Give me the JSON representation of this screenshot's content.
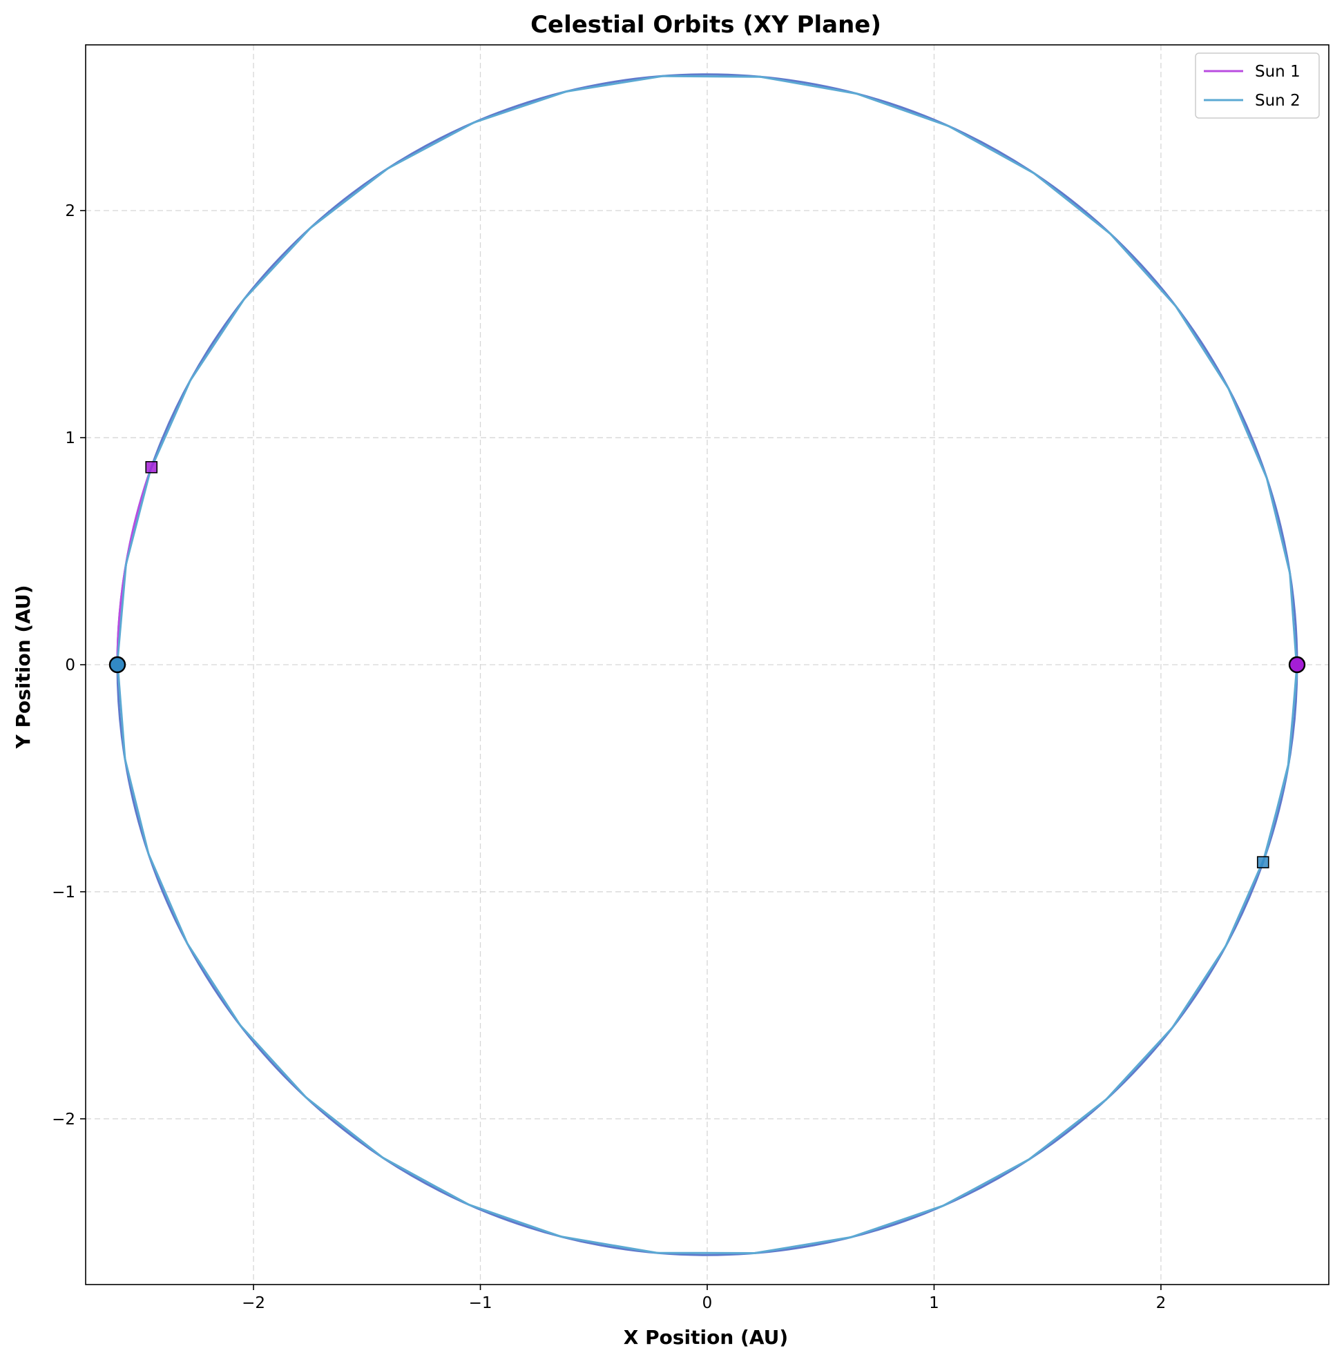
{
  "chart_data": {
    "type": "line",
    "title": "Celestial Orbits (XY Plane)",
    "xlabel": "X Position (AU)",
    "ylabel": "Y Position (AU)",
    "xlim": [
      -2.74,
      2.74
    ],
    "ylim": [
      -2.73,
      2.73
    ],
    "x_ticks": [
      -2,
      -1,
      0,
      1,
      2
    ],
    "y_ticks": [
      -2,
      -1,
      0,
      1,
      2
    ],
    "x_tick_labels": [
      "−2",
      "−1",
      "0",
      "1",
      "2"
    ],
    "y_tick_labels": [
      "−2",
      "−1",
      "0",
      "1",
      "2"
    ],
    "grid": true,
    "legend_position": "top-right",
    "orbit_radius": 2.6,
    "series": [
      {
        "name": "Sun 1",
        "color": "#b94ce0",
        "start": {
          "x": 2.6,
          "y": 0.0
        },
        "end": {
          "x": -2.45,
          "y": 0.87
        },
        "start_marker": "circle",
        "end_marker": "square",
        "marker_color": "#a51ed6",
        "direction": "counterclockwise",
        "arc_degrees": 160
      },
      {
        "name": "Sun 2",
        "color": "#5ba9d3",
        "start": {
          "x": -2.6,
          "y": 0.0
        },
        "end": {
          "x": 2.45,
          "y": -0.87
        },
        "start_marker": "circle",
        "end_marker": "square",
        "marker_color": "#3289c4",
        "direction": "counterclockwise",
        "arc_degrees": 160
      }
    ],
    "overlap_color": "#5f79cc"
  }
}
